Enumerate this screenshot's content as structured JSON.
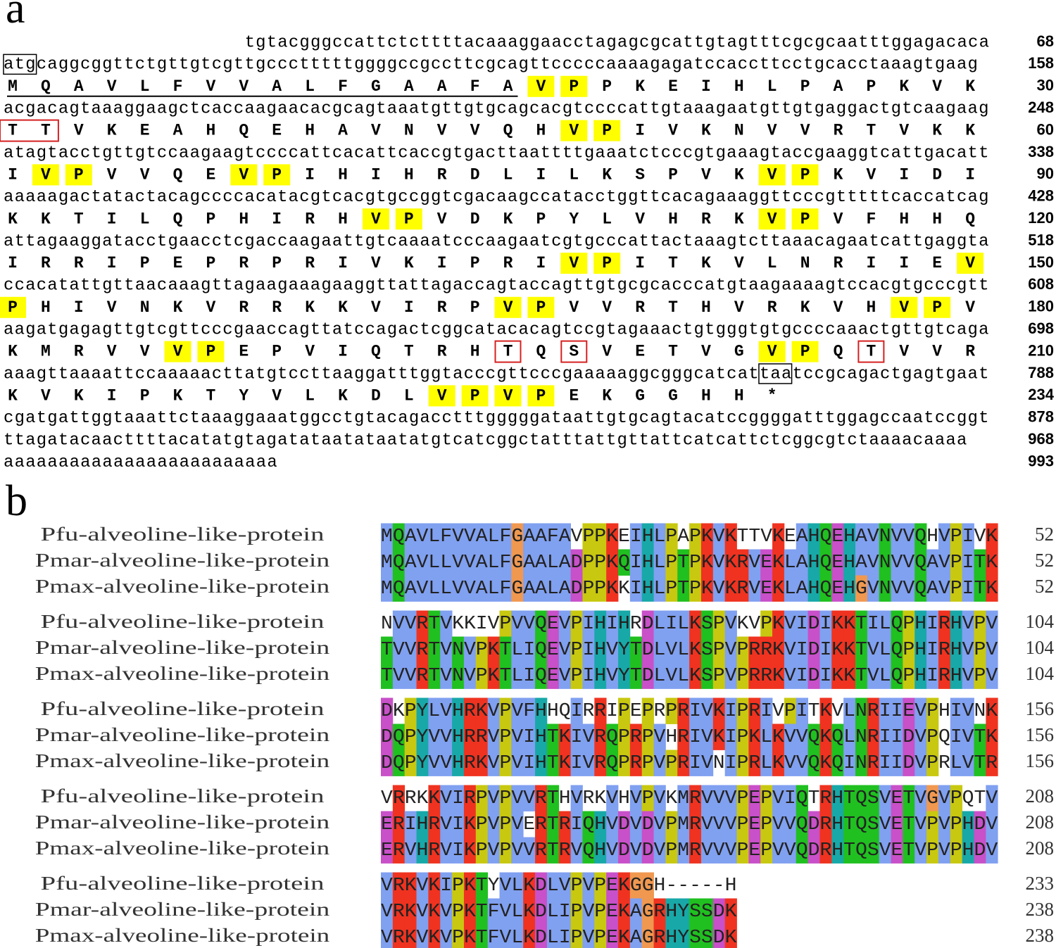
{
  "panel_a": {
    "label": "a",
    "nucleotide_lines": [
      {
        "seq": "tgtacgggccattctcttttacaaaggaacctagagcgcattgtagtttcgcgcaatttggagacaca",
        "end": 68
      },
      {
        "seq": "atgcaggcggttctgttgtcgttgccctttttggggccgccttcgcagttcccccaaaagagatccaccttcctgcacctaaagtgaag",
        "end": 158
      },
      {
        "seq": "acgacagtaaaggaagctcaccaagaacacgcagtaaatgttgtgcagcacgtccccattgtaaagaatgttgtgaggactgtcaagaag",
        "end": 248
      },
      {
        "seq": "atagtacctgttgtccaagaagtccccattcacattcaccgtgacttaattttgaaatctcccgtgaaagtaccgaaggtcattgacatt",
        "end": 338
      },
      {
        "seq": "aaaaagactatactacagccccacatacgtcacgtgccggtcgacaagccatacctggttcacagaaaggttcccgtttttcaccatcag",
        "end": 428
      },
      {
        "seq": "attagaaggatacctgaacctcgaccaagaattgtcaaaatcccaagaatcgtgcccattactaaagtcttaaacagaatcattgaggta",
        "end": 518
      },
      {
        "seq": "ccacatattgttaacaaagttagaagaaagaaggttattagaccagtaccagttgtgcgcacccatgtaagaaaagtccacgtgcccgtt",
        "end": 608
      },
      {
        "seq": "aagatgagagttgtcgttcccgaaccagttatccagactcggcatacacagtccgtagaaactgtgggtgtgccccaaactgttgtcaga",
        "end": 698
      },
      {
        "seq": "aaagttaaaattccaaaaacttatgtccttaaggatttggtacccgttcccgaaaaaggcgggcatcattaatccgcagactgagtgaat",
        "end": 788
      },
      {
        "seq": "cgatgattggtaaattctaaaggaaatggcctgtacagacctttgggggataattgtgcagtacatccggggatttggagccaatccggt",
        "end": 878
      },
      {
        "seq": "ttagatacaacttttacatatgtagatataatataatatgtcatcggctatttattgttattcatcattctcggcgtctaaaacaaaa",
        "end": 968
      },
      {
        "seq": "aaaaaaaaaaaaaaaaaaaaaaaaa",
        "end": 993
      }
    ],
    "protein_lines": [
      {
        "residues": [
          "M",
          "Q",
          "A",
          "V",
          "L",
          "F",
          "V",
          "V",
          "A",
          "L",
          "F",
          "G",
          "A",
          "A",
          "F",
          "A",
          "V",
          "P",
          "P",
          "K",
          "E",
          "I",
          "H",
          "L",
          "P",
          "A",
          "P",
          "K",
          "V",
          "K"
        ],
        "end": 30
      },
      {
        "residues": [
          "T",
          "T",
          "V",
          "K",
          "E",
          "A",
          "H",
          "Q",
          "E",
          "H",
          "A",
          "V",
          "N",
          "V",
          "V",
          "Q",
          "H",
          "V",
          "P",
          "I",
          "V",
          "K",
          "N",
          "V",
          "V",
          "R",
          "T",
          "V",
          "K",
          "K"
        ],
        "end": 60
      },
      {
        "residues": [
          "I",
          "V",
          "P",
          "V",
          "V",
          "Q",
          "E",
          "V",
          "P",
          "I",
          "H",
          "I",
          "H",
          "R",
          "D",
          "L",
          "I",
          "L",
          "K",
          "S",
          "P",
          "V",
          "K",
          "V",
          "P",
          "K",
          "V",
          "I",
          "D",
          "I"
        ],
        "end": 90
      },
      {
        "residues": [
          "K",
          "K",
          "T",
          "I",
          "L",
          "Q",
          "P",
          "H",
          "I",
          "R",
          "H",
          "V",
          "P",
          "V",
          "D",
          "K",
          "P",
          "Y",
          "L",
          "V",
          "H",
          "R",
          "K",
          "V",
          "P",
          "V",
          "F",
          "H",
          "H",
          "Q"
        ],
        "end": 120
      },
      {
        "residues": [
          "I",
          "R",
          "R",
          "I",
          "P",
          "E",
          "P",
          "R",
          "P",
          "R",
          "I",
          "V",
          "K",
          "I",
          "P",
          "R",
          "I",
          "V",
          "P",
          "I",
          "T",
          "K",
          "V",
          "L",
          "N",
          "R",
          "I",
          "I",
          "E",
          "V"
        ],
        "end": 150
      },
      {
        "residues": [
          "P",
          "H",
          "I",
          "V",
          "N",
          "K",
          "V",
          "R",
          "R",
          "K",
          "K",
          "V",
          "I",
          "R",
          "P",
          "V",
          "P",
          "V",
          "V",
          "R",
          "T",
          "H",
          "V",
          "R",
          "K",
          "V",
          "H",
          "V",
          "P",
          "V"
        ],
        "end": 180
      },
      {
        "residues": [
          "K",
          "M",
          "R",
          "V",
          "V",
          "V",
          "P",
          "E",
          "P",
          "V",
          "I",
          "Q",
          "T",
          "R",
          "H",
          "T",
          "Q",
          "S",
          "V",
          "E",
          "T",
          "V",
          "G",
          "V",
          "P",
          "Q",
          "T",
          "V",
          "V",
          "R"
        ],
        "end": 210
      },
      {
        "residues": [
          "K",
          "V",
          "K",
          "I",
          "P",
          "K",
          "T",
          "Y",
          "V",
          "L",
          "K",
          "D",
          "L",
          "V",
          "P",
          "V",
          "P",
          "E",
          "K",
          "G",
          "G",
          "H",
          "H",
          "*"
        ],
        "end": 234
      }
    ]
  },
  "panel_b": {
    "label": "b",
    "blocks": [
      {
        "rows": [
          {
            "name": "Pfu-alveoline-like-protein",
            "seq": "MQAVLFVVALFGAAFAVPPKEIHLPAPKVKTTVKEAHQEHAVNVVQHVPIVK",
            "end": 52
          },
          {
            "name": "Pmar-alveoline-like-protein",
            "seq": "MQAVLLVVALFGAALADPPKQIHLPTPKVKRVEKLAHQEHAVNVVQAVPITK",
            "end": 52
          },
          {
            "name": "Pmax-alveoline-like-protein",
            "seq": "MQAVLLVVALFGAALADPPKKIHLPTPKVKRVEKLAHQEHGVNVVQAVPITK",
            "end": 52
          }
        ]
      },
      {
        "rows": [
          {
            "name": "Pfu-alveoline-like-protein",
            "seq": "NVVRTVKKIVPVVQEVPIHIHRDLILKSPVKVPKVIDIKKTILQPHIRHVPV",
            "end": 104
          },
          {
            "name": "Pmar-alveoline-like-protein",
            "seq": "TVVRTVNVPKTLIQEVPIHVYTDLVLKSPVPRRKVIDIKKTVLQPHIRHVPV",
            "end": 104
          },
          {
            "name": "Pmax-alveoline-like-protein",
            "seq": "TVVRTVNVPKTLIQEVPIHVYTDLVLKSPVPRRKVIDIKKTVLQPHIRHVPV",
            "end": 104
          }
        ]
      },
      {
        "rows": [
          {
            "name": "Pfu-alveoline-like-protein",
            "seq": "DKPYLVHRKVPVFHHQIRRIPEPRPRIVKIPRIVPITKVLNRIIEVPHIVNK",
            "end": 156
          },
          {
            "name": "Pmar-alveoline-like-protein",
            "seq": "DQPYVVHRRVPVIHTKIVRQPRPVHRIVKIPKLKVVQKQLNRIIDVPQIVTK",
            "end": 156
          },
          {
            "name": "Pmax-alveoline-like-protein",
            "seq": "DQPYVVHRKVPVIHTKIVRQPRPVPRIVNIPRLKVVQKQINRIIDVPRLVTR",
            "end": 156
          }
        ]
      },
      {
        "rows": [
          {
            "name": "Pfu-alveoline-like-protein",
            "seq": "VRRKKVIRPVPVVRTHVRKVHVPVKMRVVVPEPVIQTRHTQSVETVGVPQTV",
            "end": 208
          },
          {
            "name": "Pmar-alveoline-like-protein",
            "seq": "ERIHRVIKPVPVERTRIQHVDVDVPMRVVVPEPVVQDRHTQSVETVPVPHDV",
            "end": 208
          },
          {
            "name": "Pmax-alveoline-like-protein",
            "seq": "ERVHRVIKPVPVVRTRVQHVDVDVPMRVVVPEPVVQDRHTQSVETVPVPHDV",
            "end": 208
          }
        ]
      },
      {
        "rows": [
          {
            "name": "Pfu-alveoline-like-protein",
            "seq": "VRKVKIPKTYVLKDLVPVPEKGGH-----H",
            "end": 233
          },
          {
            "name": "Pmar-alveoline-like-protein",
            "seq": "VRKVKVPKTFVLKDLIPVPEKAGRHYSSDK",
            "end": 238
          },
          {
            "name": "Pmax-alveoline-like-protein",
            "seq": "VRKVKVPKTFVLKDLIPVPEKAGRHYSSDK",
            "end": 238
          }
        ]
      }
    ]
  }
}
